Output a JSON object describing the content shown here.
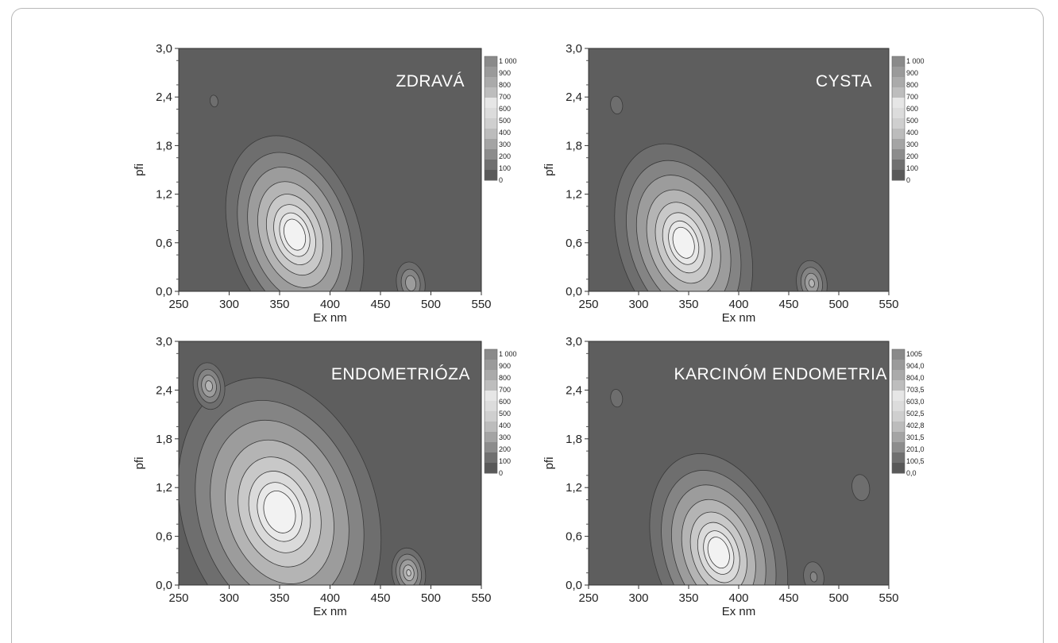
{
  "chart_data": [
    {
      "type": "heatmap",
      "title": "ZDRAVÁ",
      "xlabel": "Ex nm",
      "ylabel": "pfi",
      "xlim": [
        250,
        550
      ],
      "ylim": [
        0,
        3
      ],
      "x_ticks": [
        "250",
        "300",
        "350",
        "400",
        "450",
        "500",
        "550"
      ],
      "y_ticks": [
        "0,0",
        "0,6",
        "1,2",
        "1,8",
        "2,4",
        "3,0"
      ],
      "colorbar_labels": [
        "1 000",
        "900",
        "800",
        "700",
        "600",
        "500",
        "400",
        "300",
        "200",
        "100",
        "0"
      ],
      "peaks": [
        {
          "x": 365,
          "y": 0.7,
          "z": 1000
        },
        {
          "x": 285,
          "y": 2.35,
          "z": 180
        },
        {
          "x": 480,
          "y": 0.1,
          "z": 560
        }
      ]
    },
    {
      "type": "heatmap",
      "title": "CYSTA",
      "xlabel": "Ex nm",
      "ylabel": "pfi",
      "xlim": [
        250,
        550
      ],
      "ylim": [
        0,
        3
      ],
      "x_ticks": [
        "250",
        "300",
        "350",
        "400",
        "450",
        "500",
        "550"
      ],
      "y_ticks": [
        "0,0",
        "0,6",
        "1,2",
        "1,8",
        "2,4",
        "3,0"
      ],
      "colorbar_labels": [
        "1 000",
        "900",
        "800",
        "700",
        "600",
        "500",
        "400",
        "300",
        "200",
        "100",
        "0"
      ],
      "peaks": [
        {
          "x": 345,
          "y": 0.6,
          "z": 1000
        },
        {
          "x": 278,
          "y": 2.3,
          "z": 220
        },
        {
          "x": 473,
          "y": 0.1,
          "z": 620
        }
      ]
    },
    {
      "type": "heatmap",
      "title": "ENDOMETRIÓZA",
      "xlabel": "Ex nm",
      "ylabel": "pfi",
      "xlim": [
        250,
        550
      ],
      "ylim": [
        0,
        3
      ],
      "x_ticks": [
        "250",
        "300",
        "350",
        "400",
        "450",
        "500",
        "550"
      ],
      "y_ticks": [
        "0,0",
        "0,6",
        "1,2",
        "1,8",
        "2,4",
        "3,0"
      ],
      "colorbar_labels": [
        "1 000",
        "900",
        "800",
        "700",
        "600",
        "500",
        "400",
        "300",
        "200",
        "100",
        "0"
      ],
      "peaks": [
        {
          "x": 350,
          "y": 0.9,
          "z": 1000
        },
        {
          "x": 280,
          "y": 2.45,
          "z": 650
        },
        {
          "x": 478,
          "y": 0.15,
          "z": 720
        }
      ]
    },
    {
      "type": "heatmap",
      "title": "KARCINÓM ENDOMETRIA",
      "xlabel": "Ex nm",
      "ylabel": "pfi",
      "xlim": [
        250,
        550
      ],
      "ylim": [
        0,
        3
      ],
      "x_ticks": [
        "250",
        "300",
        "350",
        "400",
        "450",
        "500",
        "550"
      ],
      "y_ticks": [
        "0,0",
        "0,6",
        "1,2",
        "1,8",
        "2,4",
        "3,0"
      ],
      "colorbar_labels": [
        "1005",
        "904,0",
        "804,0",
        "703,5",
        "603,0",
        "502,5",
        "402,8",
        "301,5",
        "201,0",
        "100,5",
        "0,0"
      ],
      "peaks": [
        {
          "x": 380,
          "y": 0.4,
          "z": 1005
        },
        {
          "x": 278,
          "y": 2.3,
          "z": 220
        },
        {
          "x": 475,
          "y": 0.1,
          "z": 350
        },
        {
          "x": 522,
          "y": 1.2,
          "z": 300
        }
      ]
    }
  ]
}
